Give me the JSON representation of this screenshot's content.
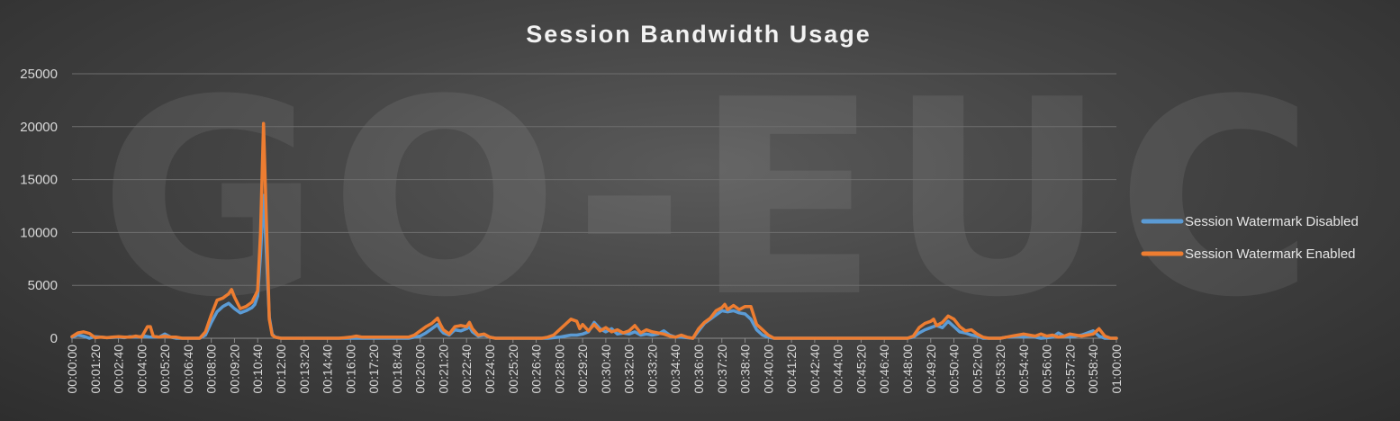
{
  "watermark": "GO-EUC",
  "chart_data": {
    "type": "line",
    "title": "Session Bandwidth Usage",
    "xlabel": "",
    "ylabel": "",
    "ylim": [
      0,
      25000
    ],
    "xlim": [
      0,
      3600
    ],
    "y_ticks": [
      0,
      5000,
      10000,
      15000,
      20000,
      25000
    ],
    "x_ticks": [
      "00:00:00",
      "00:01:20",
      "00:02:40",
      "00:04:00",
      "00:05:20",
      "00:06:40",
      "00:08:00",
      "00:09:20",
      "00:10:40",
      "00:12:00",
      "00:13:20",
      "00:14:40",
      "00:16:00",
      "00:17:20",
      "00:18:40",
      "00:20:00",
      "00:21:20",
      "00:22:40",
      "00:24:00",
      "00:25:20",
      "00:26:40",
      "00:28:00",
      "00:29:20",
      "00:30:40",
      "00:32:00",
      "00:33:20",
      "00:34:40",
      "00:36:00",
      "00:37:20",
      "00:38:40",
      "00:40:00",
      "00:41:20",
      "00:42:40",
      "00:44:00",
      "00:45:20",
      "00:46:40",
      "00:48:00",
      "00:49:20",
      "00:50:40",
      "00:52:00",
      "00:53:20",
      "00:54:40",
      "00:56:00",
      "00:57:20",
      "00:58:40",
      "01:00:00"
    ],
    "grid": true,
    "legend_position": "right",
    "series": [
      {
        "name": "Session Watermark Disabled",
        "color": "#5b9bd5",
        "points": [
          [
            0,
            100
          ],
          [
            20,
            300
          ],
          [
            40,
            200
          ],
          [
            60,
            0
          ],
          [
            80,
            150
          ],
          [
            100,
            100
          ],
          [
            120,
            50
          ],
          [
            160,
            100
          ],
          [
            180,
            50
          ],
          [
            200,
            150
          ],
          [
            220,
            100
          ],
          [
            250,
            200
          ],
          [
            270,
            100
          ],
          [
            300,
            100
          ],
          [
            320,
            400
          ],
          [
            340,
            100
          ],
          [
            360,
            0
          ],
          [
            400,
            0
          ],
          [
            440,
            0
          ],
          [
            460,
            300
          ],
          [
            480,
            1500
          ],
          [
            500,
            2500
          ],
          [
            520,
            3000
          ],
          [
            540,
            3300
          ],
          [
            560,
            2800
          ],
          [
            580,
            2400
          ],
          [
            600,
            2600
          ],
          [
            620,
            2900
          ],
          [
            630,
            3200
          ],
          [
            640,
            4000
          ],
          [
            650,
            8000
          ],
          [
            660,
            13500
          ],
          [
            670,
            8000
          ],
          [
            680,
            2000
          ],
          [
            690,
            400
          ],
          [
            700,
            100
          ],
          [
            720,
            0
          ],
          [
            1000,
            0
          ],
          [
            1100,
            0
          ],
          [
            1160,
            0
          ],
          [
            1180,
            100
          ],
          [
            1200,
            200
          ],
          [
            1220,
            500
          ],
          [
            1240,
            900
          ],
          [
            1260,
            1300
          ],
          [
            1270,
            800
          ],
          [
            1280,
            500
          ],
          [
            1300,
            300
          ],
          [
            1320,
            800
          ],
          [
            1340,
            700
          ],
          [
            1360,
            900
          ],
          [
            1370,
            1100
          ],
          [
            1380,
            600
          ],
          [
            1400,
            200
          ],
          [
            1420,
            300
          ],
          [
            1440,
            100
          ],
          [
            1460,
            0
          ],
          [
            1560,
            0
          ],
          [
            1640,
            0
          ],
          [
            1680,
            100
          ],
          [
            1700,
            200
          ],
          [
            1720,
            300
          ],
          [
            1740,
            300
          ],
          [
            1760,
            400
          ],
          [
            1780,
            600
          ],
          [
            1800,
            1500
          ],
          [
            1820,
            900
          ],
          [
            1840,
            600
          ],
          [
            1860,
            900
          ],
          [
            1880,
            400
          ],
          [
            1900,
            500
          ],
          [
            1920,
            400
          ],
          [
            1940,
            600
          ],
          [
            1960,
            300
          ],
          [
            1980,
            400
          ],
          [
            2000,
            300
          ],
          [
            2020,
            400
          ],
          [
            2040,
            700
          ],
          [
            2060,
            300
          ],
          [
            2080,
            100
          ],
          [
            2100,
            100
          ],
          [
            2140,
            0
          ],
          [
            2160,
            700
          ],
          [
            2180,
            1400
          ],
          [
            2200,
            1800
          ],
          [
            2220,
            2200
          ],
          [
            2240,
            2600
          ],
          [
            2260,
            2500
          ],
          [
            2280,
            2600
          ],
          [
            2300,
            2400
          ],
          [
            2320,
            2300
          ],
          [
            2340,
            1800
          ],
          [
            2360,
            800
          ],
          [
            2380,
            300
          ],
          [
            2400,
            100
          ],
          [
            2420,
            0
          ],
          [
            2880,
            0
          ],
          [
            2900,
            100
          ],
          [
            2920,
            500
          ],
          [
            2940,
            800
          ],
          [
            2960,
            1000
          ],
          [
            2980,
            1200
          ],
          [
            3000,
            1000
          ],
          [
            3020,
            1600
          ],
          [
            3040,
            1100
          ],
          [
            3060,
            600
          ],
          [
            3080,
            500
          ],
          [
            3100,
            300
          ],
          [
            3120,
            200
          ],
          [
            3140,
            0
          ],
          [
            3200,
            0
          ],
          [
            3220,
            100
          ],
          [
            3240,
            100
          ],
          [
            3260,
            200
          ],
          [
            3280,
            100
          ],
          [
            3300,
            200
          ],
          [
            3320,
            100
          ],
          [
            3340,
            0
          ],
          [
            3380,
            100
          ],
          [
            3400,
            500
          ],
          [
            3420,
            200
          ],
          [
            3440,
            100
          ],
          [
            3460,
            200
          ],
          [
            3480,
            300
          ],
          [
            3500,
            500
          ],
          [
            3520,
            700
          ],
          [
            3540,
            200
          ],
          [
            3560,
            0
          ],
          [
            3600,
            0
          ]
        ]
      },
      {
        "name": "Session Watermark Enabled",
        "color": "#ed7d31",
        "points": [
          [
            0,
            150
          ],
          [
            20,
            500
          ],
          [
            40,
            600
          ],
          [
            60,
            450
          ],
          [
            80,
            50
          ],
          [
            100,
            100
          ],
          [
            120,
            50
          ],
          [
            140,
            100
          ],
          [
            160,
            150
          ],
          [
            180,
            100
          ],
          [
            200,
            100
          ],
          [
            220,
            200
          ],
          [
            240,
            100
          ],
          [
            260,
            1100
          ],
          [
            270,
            1100
          ],
          [
            280,
            200
          ],
          [
            300,
            100
          ],
          [
            320,
            200
          ],
          [
            340,
            100
          ],
          [
            360,
            100
          ],
          [
            380,
            0
          ],
          [
            400,
            0
          ],
          [
            440,
            0
          ],
          [
            460,
            600
          ],
          [
            480,
            2200
          ],
          [
            500,
            3600
          ],
          [
            520,
            3800
          ],
          [
            540,
            4200
          ],
          [
            550,
            4600
          ],
          [
            560,
            3900
          ],
          [
            580,
            2800
          ],
          [
            600,
            3000
          ],
          [
            620,
            3400
          ],
          [
            640,
            4500
          ],
          [
            650,
            10000
          ],
          [
            660,
            20300
          ],
          [
            670,
            11000
          ],
          [
            680,
            1800
          ],
          [
            690,
            300
          ],
          [
            700,
            100
          ],
          [
            720,
            0
          ],
          [
            920,
            0
          ],
          [
            960,
            100
          ],
          [
            980,
            200
          ],
          [
            1000,
            100
          ],
          [
            1020,
            100
          ],
          [
            1100,
            100
          ],
          [
            1160,
            100
          ],
          [
            1180,
            300
          ],
          [
            1200,
            700
          ],
          [
            1220,
            1100
          ],
          [
            1240,
            1400
          ],
          [
            1260,
            1900
          ],
          [
            1270,
            1300
          ],
          [
            1280,
            800
          ],
          [
            1300,
            400
          ],
          [
            1320,
            1100
          ],
          [
            1340,
            1200
          ],
          [
            1360,
            1100
          ],
          [
            1370,
            1500
          ],
          [
            1380,
            900
          ],
          [
            1400,
            300
          ],
          [
            1420,
            400
          ],
          [
            1440,
            100
          ],
          [
            1460,
            0
          ],
          [
            1560,
            0
          ],
          [
            1620,
            0
          ],
          [
            1640,
            100
          ],
          [
            1660,
            300
          ],
          [
            1680,
            800
          ],
          [
            1700,
            1300
          ],
          [
            1720,
            1800
          ],
          [
            1740,
            1600
          ],
          [
            1750,
            900
          ],
          [
            1760,
            1300
          ],
          [
            1780,
            700
          ],
          [
            1800,
            1300
          ],
          [
            1820,
            700
          ],
          [
            1840,
            1000
          ],
          [
            1860,
            600
          ],
          [
            1880,
            800
          ],
          [
            1900,
            500
          ],
          [
            1920,
            700
          ],
          [
            1940,
            1200
          ],
          [
            1960,
            500
          ],
          [
            1980,
            800
          ],
          [
            2000,
            600
          ],
          [
            2020,
            500
          ],
          [
            2040,
            400
          ],
          [
            2060,
            200
          ],
          [
            2080,
            100
          ],
          [
            2100,
            300
          ],
          [
            2120,
            100
          ],
          [
            2140,
            0
          ],
          [
            2160,
            900
          ],
          [
            2180,
            1500
          ],
          [
            2200,
            1900
          ],
          [
            2220,
            2600
          ],
          [
            2240,
            2900
          ],
          [
            2250,
            3200
          ],
          [
            2260,
            2700
          ],
          [
            2280,
            3100
          ],
          [
            2300,
            2700
          ],
          [
            2320,
            3000
          ],
          [
            2340,
            3000
          ],
          [
            2360,
            1300
          ],
          [
            2380,
            800
          ],
          [
            2400,
            300
          ],
          [
            2420,
            0
          ],
          [
            2880,
            0
          ],
          [
            2900,
            200
          ],
          [
            2920,
            1000
          ],
          [
            2940,
            1400
          ],
          [
            2960,
            1600
          ],
          [
            2970,
            1800
          ],
          [
            2980,
            1200
          ],
          [
            3000,
            1500
          ],
          [
            3020,
            2100
          ],
          [
            3040,
            1800
          ],
          [
            3060,
            1100
          ],
          [
            3080,
            700
          ],
          [
            3100,
            800
          ],
          [
            3120,
            400
          ],
          [
            3140,
            100
          ],
          [
            3160,
            0
          ],
          [
            3200,
            0
          ],
          [
            3220,
            100
          ],
          [
            3240,
            200
          ],
          [
            3260,
            300
          ],
          [
            3280,
            400
          ],
          [
            3300,
            300
          ],
          [
            3320,
            200
          ],
          [
            3340,
            400
          ],
          [
            3360,
            200
          ],
          [
            3380,
            300
          ],
          [
            3400,
            100
          ],
          [
            3420,
            200
          ],
          [
            3440,
            400
          ],
          [
            3460,
            300
          ],
          [
            3480,
            200
          ],
          [
            3500,
            300
          ],
          [
            3520,
            400
          ],
          [
            3540,
            900
          ],
          [
            3560,
            200
          ],
          [
            3580,
            0
          ],
          [
            3600,
            0
          ]
        ]
      }
    ]
  }
}
